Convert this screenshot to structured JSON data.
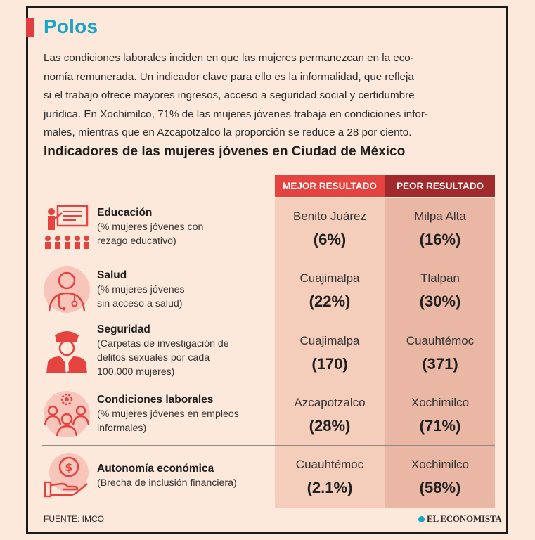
{
  "header": {
    "title": "Polos",
    "intro_lines": [
      "Las condiciones laborales inciden en que las mujeres permanezcan en la eco-",
      "nomía remunerada. Un indicador clave para ello es la informalidad, que refleja",
      "si el trabajo ofrece mayores ingresos, acceso a seguridad social y certidumbre",
      "jurídica. En Xochimilco, 71% de las mujeres jóvenes trabaja en condiciones infor-",
      "males, mientras que en Azcapotzalco la proporción se reduce a 28 por ciento."
    ]
  },
  "table": {
    "subtitle": "Indicadores de las mujeres jóvenes en Ciudad de México",
    "col_best": "MEJOR RESULTADO",
    "col_worst": "PEOR RESULTADO",
    "rows": [
      {
        "title": "Educación",
        "desc": [
          "(% mujeres jóvenes con",
          "rezago educativo)"
        ],
        "best_place": "Benito Juárez",
        "best_value": "(6%)",
        "worst_place": "Milpa Alta",
        "worst_value": "(16%)",
        "icon": "classroom-icon"
      },
      {
        "title": "Salud",
        "desc": [
          "(% mujeres jóvenes",
          "sin acceso a salud)"
        ],
        "best_place": "Cuajimalpa",
        "best_value": "(22%)",
        "worst_place": "Tlalpan",
        "worst_value": "(30%)",
        "icon": "doctor-icon"
      },
      {
        "title": "Seguridad",
        "desc": [
          "(Carpetas de investigación de",
          "delitos sexuales por cada",
          "100,000 mujeres)"
        ],
        "best_place": "Cuajimalpa",
        "best_value": "(170)",
        "worst_place": "Cuauhtémoc",
        "worst_value": "(371)",
        "icon": "police-icon"
      },
      {
        "title": "Condiciones laborales",
        "desc": [
          "(% mujeres jóvenes en empleos",
          "informales)"
        ],
        "best_place": "Azcapotzalco",
        "best_value": "(28%)",
        "worst_place": "Xochimilco",
        "worst_value": "(71%)",
        "icon": "team-gear-icon"
      },
      {
        "title": "Autonomía económica",
        "desc": [
          "(Brecha de inclusión financiera)"
        ],
        "best_place": "Cuauhtémoc",
        "best_value": "(2.1%)",
        "worst_place": "Xochimilco",
        "worst_value": "(58%)",
        "icon": "money-hand-icon"
      }
    ]
  },
  "footer": {
    "source": "FUENTE: IMCO",
    "brand": "EL ECONOMISTA"
  },
  "colors": {
    "accent_blue": "#1aa4c8",
    "best_header": "#e5433f",
    "worst_header": "#a32a2c",
    "icon_red": "#e5433f"
  }
}
